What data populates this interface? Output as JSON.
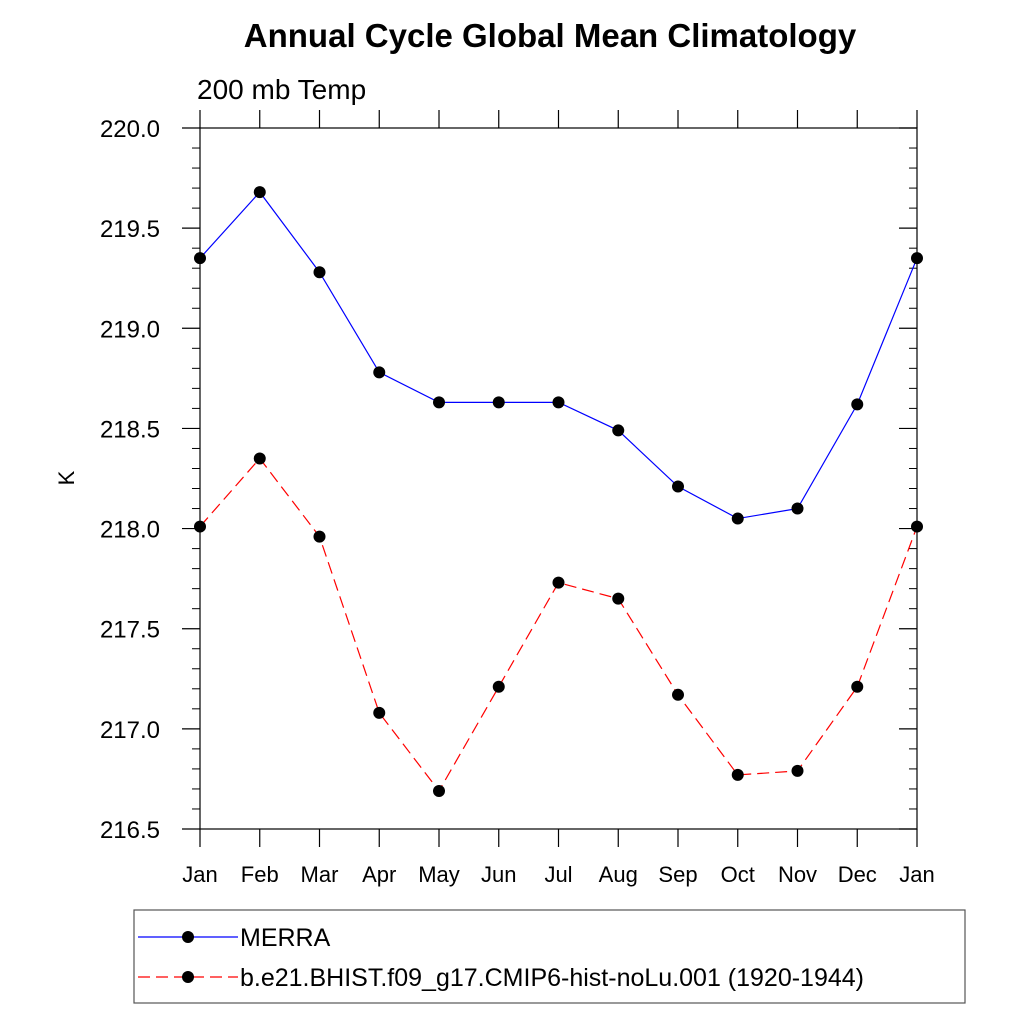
{
  "chart_data": {
    "type": "line",
    "title": "Annual Cycle Global Mean Climatology",
    "subtitle": "200 mb Temp",
    "ylabel": "K",
    "xlabel": "",
    "categories": [
      "Jan",
      "Feb",
      "Mar",
      "Apr",
      "May",
      "Jun",
      "Jul",
      "Aug",
      "Sep",
      "Oct",
      "Nov",
      "Dec",
      "Jan"
    ],
    "ylim": [
      216.5,
      220.0
    ],
    "yticks": [
      "216.5",
      "217.0",
      "217.5",
      "218.0",
      "218.5",
      "219.0",
      "219.5",
      "220.0"
    ],
    "grid": false,
    "legend_placement": "bottom",
    "series": [
      {
        "name": "MERRA",
        "color": "#0000ff",
        "line_style": "solid",
        "marker": "filled-circle",
        "values": [
          219.35,
          219.68,
          219.28,
          218.78,
          218.63,
          218.63,
          218.63,
          218.49,
          218.21,
          218.05,
          218.1,
          218.62,
          219.35
        ]
      },
      {
        "name": "b.e21.BHIST.f09_g17.CMIP6-hist-noLu.001 (1920-1944)",
        "color": "#ff0000",
        "line_style": "dashed",
        "marker": "filled-circle",
        "values": [
          218.01,
          218.35,
          217.96,
          217.08,
          216.69,
          217.21,
          217.73,
          217.65,
          217.17,
          216.77,
          216.79,
          217.21,
          218.01
        ]
      }
    ]
  }
}
